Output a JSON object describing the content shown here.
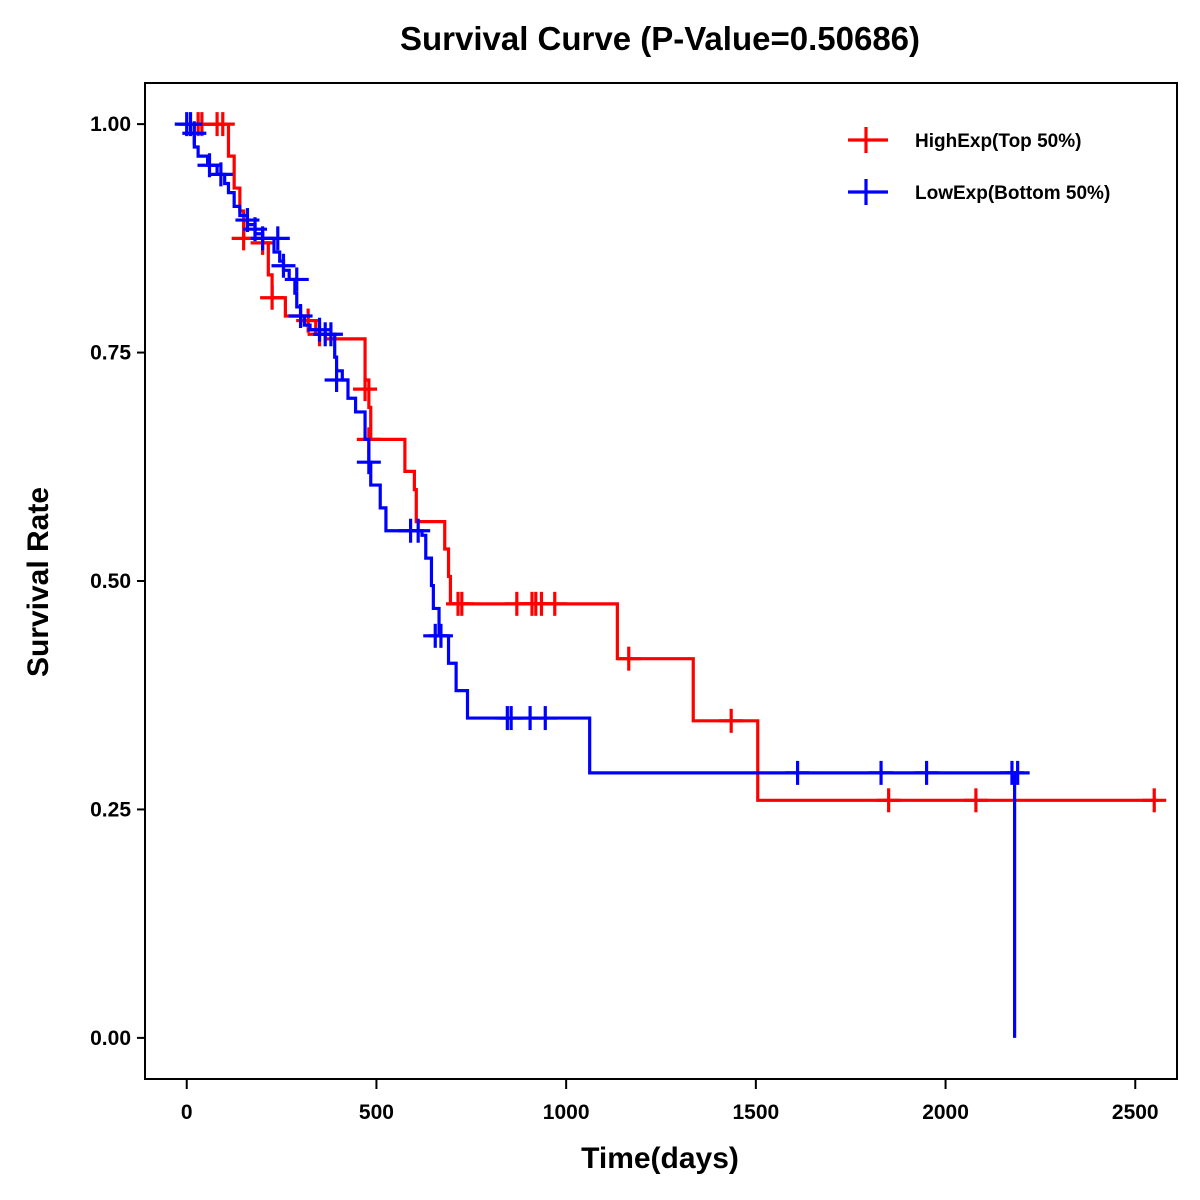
{
  "chart_data": {
    "type": "line",
    "subtype": "kaplan-meier-step",
    "title": "Survival Curve (P-Value=0.50686)",
    "xlabel": "Time(days)",
    "ylabel": "Survival Rate",
    "xlim": [
      -110,
      2610
    ],
    "ylim": [
      -0.045,
      1.045
    ],
    "xticks": [
      0,
      500,
      1000,
      1500,
      2000,
      2500
    ],
    "xtick_labels": [
      "0",
      "500",
      "1000",
      "1500",
      "2000",
      "2500"
    ],
    "yticks": [
      0,
      0.25,
      0.5,
      0.75,
      1.0
    ],
    "ytick_labels": [
      "0.00",
      "0.25",
      "0.50",
      "0.75",
      "1.00"
    ],
    "grid": false,
    "legend_position": "top-right",
    "series": [
      {
        "name": "HighExp(Top 50%)",
        "color": "#ff0000",
        "steps": [
          [
            0,
            1.0
          ],
          [
            110,
            0.965
          ],
          [
            125,
            0.93
          ],
          [
            140,
            0.905
          ],
          [
            150,
            0.875
          ],
          [
            200,
            0.87
          ],
          [
            215,
            0.835
          ],
          [
            225,
            0.81
          ],
          [
            260,
            0.79
          ],
          [
            310,
            0.785
          ],
          [
            340,
            0.77
          ],
          [
            365,
            0.765
          ],
          [
            395,
            0.765
          ],
          [
            455,
            0.765
          ],
          [
            470,
            0.72
          ],
          [
            480,
            0.69
          ],
          [
            485,
            0.655
          ],
          [
            565,
            0.655
          ],
          [
            575,
            0.62
          ],
          [
            600,
            0.6
          ],
          [
            605,
            0.565
          ],
          [
            665,
            0.565
          ],
          [
            680,
            0.535
          ],
          [
            690,
            0.505
          ],
          [
            695,
            0.475
          ],
          [
            1130,
            0.475
          ],
          [
            1135,
            0.415
          ],
          [
            1330,
            0.415
          ],
          [
            1335,
            0.347
          ],
          [
            1500,
            0.347
          ],
          [
            1505,
            0.26
          ],
          [
            2560,
            0.26
          ]
        ],
        "censored": [
          [
            30,
            1.0
          ],
          [
            40,
            1.0
          ],
          [
            80,
            1.0
          ],
          [
            95,
            1.0
          ],
          [
            150,
            0.875
          ],
          [
            200,
            0.87
          ],
          [
            225,
            0.81
          ],
          [
            320,
            0.785
          ],
          [
            350,
            0.77
          ],
          [
            470,
            0.71
          ],
          [
            480,
            0.655
          ],
          [
            715,
            0.475
          ],
          [
            725,
            0.475
          ],
          [
            870,
            0.475
          ],
          [
            910,
            0.475
          ],
          [
            920,
            0.475
          ],
          [
            935,
            0.475
          ],
          [
            970,
            0.475
          ],
          [
            1165,
            0.415
          ],
          [
            1435,
            0.347
          ],
          [
            1850,
            0.26
          ],
          [
            2080,
            0.26
          ],
          [
            2550,
            0.26
          ]
        ]
      },
      {
        "name": "LowExp(Bottom 50%)",
        "color": "#0000ff",
        "steps": [
          [
            0,
            1.0
          ],
          [
            10,
            0.99
          ],
          [
            20,
            0.975
          ],
          [
            30,
            0.965
          ],
          [
            55,
            0.955
          ],
          [
            80,
            0.945
          ],
          [
            100,
            0.935
          ],
          [
            110,
            0.925
          ],
          [
            125,
            0.91
          ],
          [
            140,
            0.9
          ],
          [
            160,
            0.89
          ],
          [
            180,
            0.88
          ],
          [
            200,
            0.875
          ],
          [
            230,
            0.86
          ],
          [
            245,
            0.85
          ],
          [
            255,
            0.84
          ],
          [
            270,
            0.83
          ],
          [
            285,
            0.815
          ],
          [
            290,
            0.8
          ],
          [
            300,
            0.79
          ],
          [
            310,
            0.78
          ],
          [
            325,
            0.775
          ],
          [
            350,
            0.77
          ],
          [
            390,
            0.745
          ],
          [
            395,
            0.73
          ],
          [
            410,
            0.72
          ],
          [
            425,
            0.7
          ],
          [
            445,
            0.685
          ],
          [
            470,
            0.655
          ],
          [
            480,
            0.63
          ],
          [
            485,
            0.605
          ],
          [
            510,
            0.58
          ],
          [
            525,
            0.555
          ],
          [
            620,
            0.55
          ],
          [
            630,
            0.525
          ],
          [
            645,
            0.495
          ],
          [
            650,
            0.47
          ],
          [
            665,
            0.44
          ],
          [
            690,
            0.41
          ],
          [
            710,
            0.38
          ],
          [
            740,
            0.35
          ],
          [
            1060,
            0.35
          ],
          [
            1062,
            0.29
          ],
          [
            2180,
            0.29
          ],
          [
            2182,
            0.0
          ]
        ],
        "censored": [
          [
            0,
            1.0
          ],
          [
            10,
            1.0
          ],
          [
            20,
            0.99
          ],
          [
            60,
            0.955
          ],
          [
            90,
            0.945
          ],
          [
            160,
            0.895
          ],
          [
            180,
            0.885
          ],
          [
            200,
            0.875
          ],
          [
            240,
            0.875
          ],
          [
            255,
            0.845
          ],
          [
            290,
            0.83
          ],
          [
            300,
            0.79
          ],
          [
            350,
            0.775
          ],
          [
            365,
            0.77
          ],
          [
            380,
            0.77
          ],
          [
            395,
            0.72
          ],
          [
            480,
            0.63
          ],
          [
            590,
            0.555
          ],
          [
            610,
            0.555
          ],
          [
            655,
            0.44
          ],
          [
            670,
            0.44
          ],
          [
            845,
            0.35
          ],
          [
            855,
            0.35
          ],
          [
            905,
            0.35
          ],
          [
            945,
            0.35
          ],
          [
            1610,
            0.29
          ],
          [
            1830,
            0.29
          ],
          [
            1950,
            0.29
          ],
          [
            2175,
            0.29
          ],
          [
            2190,
            0.29
          ]
        ]
      }
    ]
  }
}
